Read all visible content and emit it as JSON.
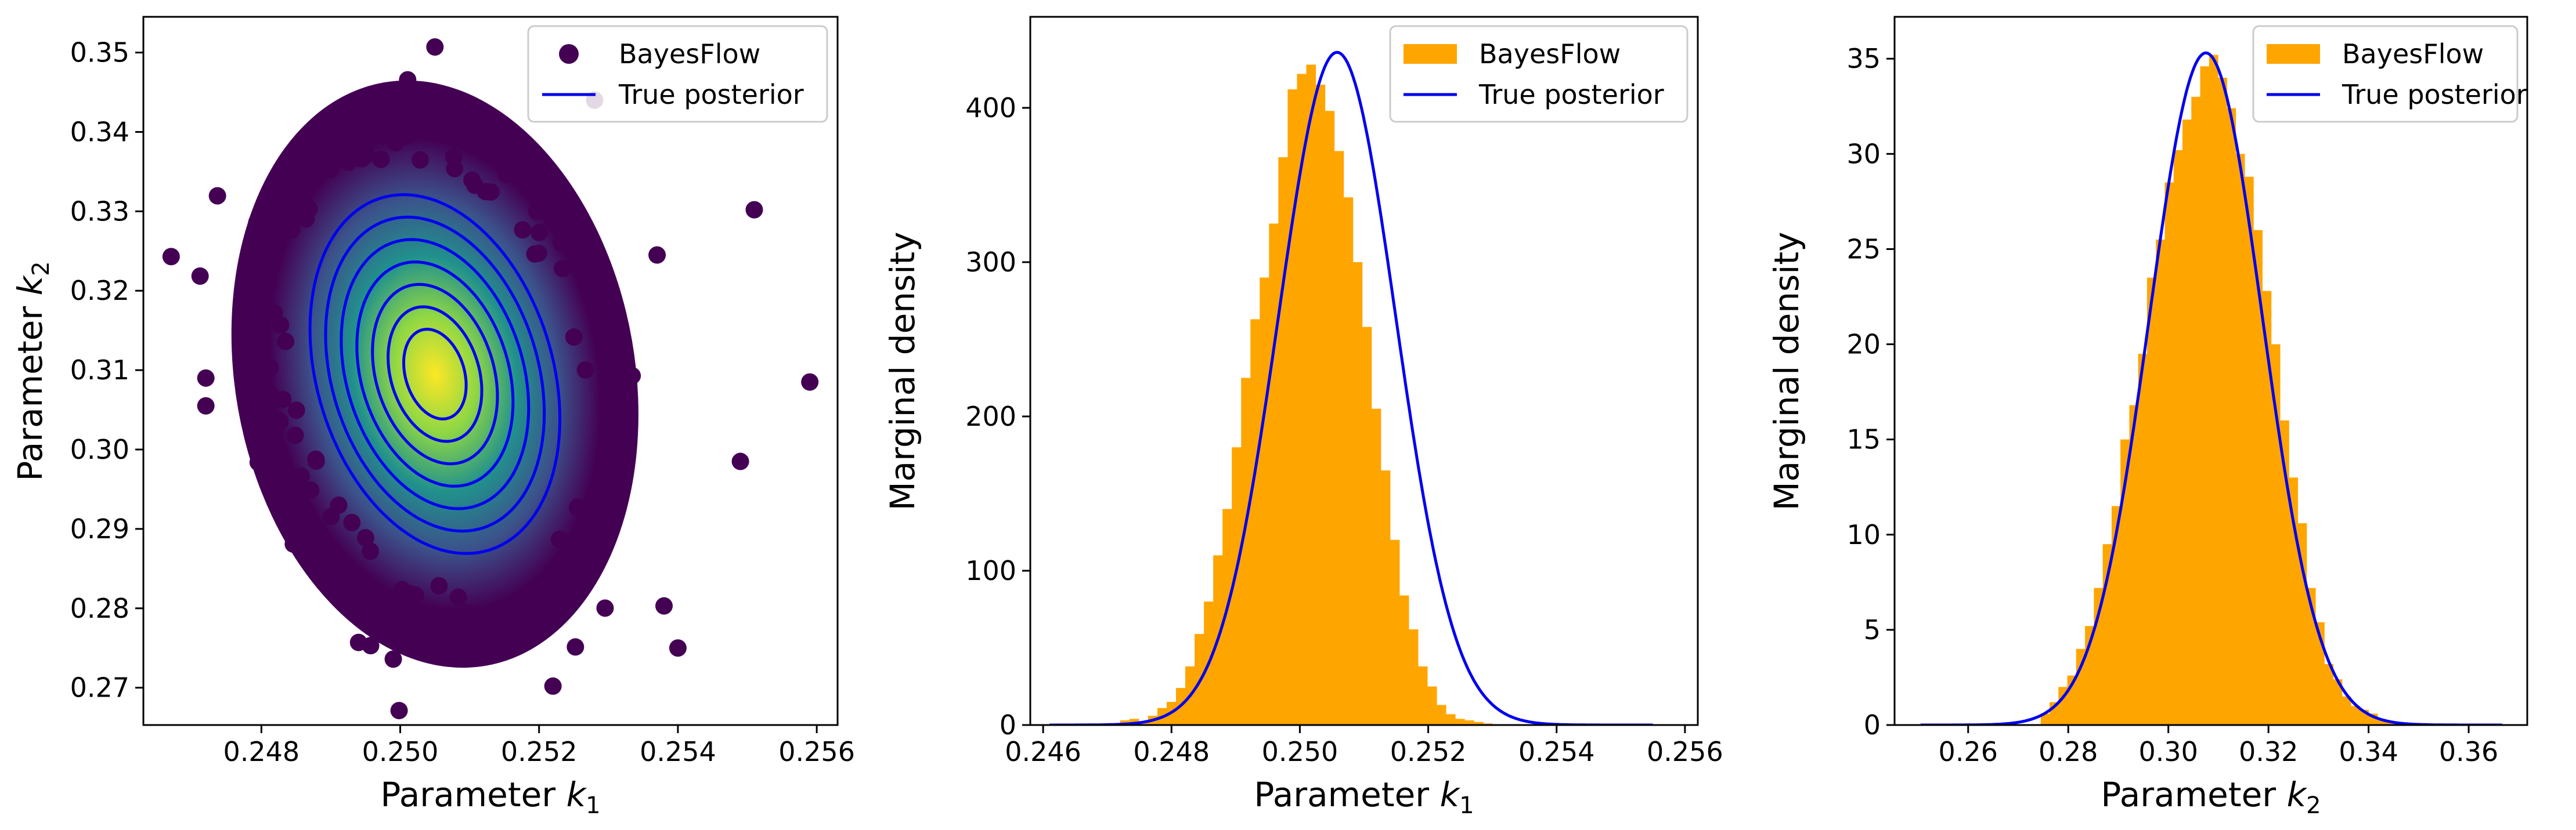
{
  "colors": {
    "bayesflow_hist": "#ffa500",
    "true_posterior": "#0000ee",
    "scatter_low": "#440154",
    "scatter_high": "#fde725"
  },
  "chart_data": [
    {
      "type": "scatter",
      "xlabel_main": "Parameter",
      "xlabel_sub": "1",
      "ylabel_main": "Parameter",
      "ylabel_sub": "2",
      "xlim": [
        0.2463,
        0.2563
      ],
      "ylim": [
        0.2653,
        0.3545
      ],
      "xticks": [
        0.248,
        0.25,
        0.252,
        0.254,
        0.256
      ],
      "xtick_labels": [
        "0.248",
        "0.250",
        "0.252",
        "0.254",
        "0.256"
      ],
      "yticks": [
        0.27,
        0.28,
        0.29,
        0.3,
        0.31,
        0.32,
        0.33,
        0.34,
        0.35
      ],
      "ytick_labels": [
        "0.27",
        "0.28",
        "0.29",
        "0.30",
        "0.31",
        "0.32",
        "0.33",
        "0.34",
        "0.35"
      ],
      "legend_position": "top-right",
      "legend": [
        "BayesFlow",
        "True posterior"
      ],
      "posterior_mean": [
        0.2505,
        0.3095
      ],
      "posterior_sd": [
        0.0009,
        0.0113
      ],
      "posterior_corr": -0.25,
      "contour_levels_sigma": [
        2.0,
        1.75,
        1.5,
        1.25,
        1.0,
        0.75,
        0.5
      ],
      "outlier_points": [
        [
          0.2467,
          0.3243
        ],
        [
          0.2472,
          0.309
        ],
        [
          0.2472,
          0.3055
        ],
        [
          0.2528,
          0.344
        ],
        [
          0.2551,
          0.3302
        ],
        [
          0.2559,
          0.3085
        ],
        [
          0.254,
          0.275
        ],
        [
          0.2522,
          0.2702
        ],
        [
          0.2494,
          0.2757
        ],
        [
          0.2499,
          0.2736
        ],
        [
          0.2538,
          0.2803
        ],
        [
          0.2505,
          0.3507
        ],
        [
          0.2549,
          0.2985
        ],
        [
          0.2537,
          0.3245
        ]
      ],
      "grid": false
    },
    {
      "type": "bar",
      "xlabel_main": "Parameter",
      "xlabel_sub": "1",
      "ylabel": "Marginal density",
      "xlim": [
        0.2458,
        0.2562
      ],
      "ylim": [
        0,
        459
      ],
      "xticks": [
        0.246,
        0.248,
        0.25,
        0.252,
        0.254,
        0.256
      ],
      "xtick_labels": [
        "0.246",
        "0.248",
        "0.250",
        "0.252",
        "0.254",
        "0.256"
      ],
      "yticks": [
        0,
        100,
        200,
        300,
        400
      ],
      "ytick_labels": [
        "0",
        "100",
        "200",
        "300",
        "400"
      ],
      "legend_position": "top-right",
      "legend": [
        "BayesFlow",
        "True posterior"
      ],
      "bin_start": 0.2472,
      "bin_width": 0.000145,
      "values": [
        3,
        4,
        2,
        6,
        11,
        15,
        24,
        38,
        59,
        80,
        110,
        140,
        180,
        225,
        263,
        290,
        325,
        368,
        412,
        422,
        428,
        415,
        398,
        372,
        342,
        300,
        258,
        205,
        165,
        120,
        84,
        62,
        38,
        25,
        13,
        7,
        4,
        3,
        2,
        1
      ],
      "curve": {
        "mean": 0.25058,
        "sd": 0.000915,
        "x_range": [
          0.2461,
          0.2555
        ]
      },
      "grid": false
    },
    {
      "type": "bar",
      "xlabel_main": "Parameter",
      "xlabel_sub": "2",
      "ylabel": "Marginal density",
      "xlim": [
        0.2453,
        0.3717
      ],
      "ylim": [
        0,
        37.2
      ],
      "xticks": [
        0.26,
        0.28,
        0.3,
        0.32,
        0.34,
        0.36
      ],
      "xtick_labels": [
        "0.26",
        "0.28",
        "0.30",
        "0.32",
        "0.34",
        "0.36"
      ],
      "yticks": [
        0,
        5,
        10,
        15,
        20,
        25,
        30,
        35
      ],
      "ytick_labels": [
        "0",
        "5",
        "10",
        "15",
        "20",
        "25",
        "30",
        "35"
      ],
      "legend_position": "top-right",
      "legend": [
        "BayesFlow",
        "True posterior"
      ],
      "bin_start": 0.2745,
      "bin_width": 0.00177,
      "values": [
        0.6,
        1.2,
        2.0,
        2.6,
        4.0,
        5.2,
        7.2,
        9.5,
        11.5,
        15.0,
        16.8,
        19.5,
        23.5,
        25.5,
        28.5,
        30.2,
        31.8,
        33.0,
        34.6,
        35.2,
        34.0,
        32.4,
        30.0,
        28.8,
        26.0,
        22.8,
        20.0,
        16.0,
        13.0,
        10.6,
        7.2,
        5.4,
        3.2,
        2.4,
        1.5,
        1.0,
        0.8,
        0.6,
        0.3,
        0.2
      ],
      "curve": {
        "mean": 0.3075,
        "sd": 0.0113,
        "x_range": [
          0.2505,
          0.3667
        ]
      },
      "grid": false
    }
  ]
}
